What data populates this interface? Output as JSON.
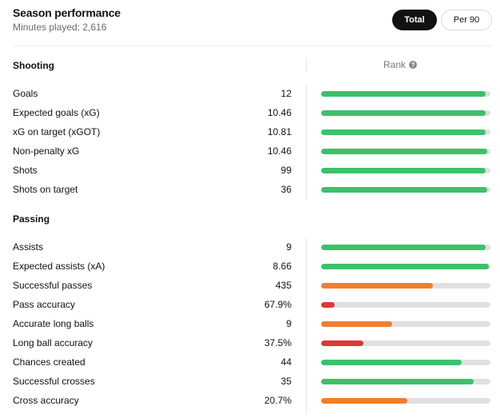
{
  "header": {
    "title": "Season performance",
    "subtitle": "Minutes played: 2,616"
  },
  "toggle": {
    "total_label": "Total",
    "per90_label": "Per 90",
    "selected": "Total"
  },
  "rank_header": {
    "label": "Rank",
    "icon": "info-icon"
  },
  "colors": {
    "high": "#3ec06a",
    "mid": "#f07f2c",
    "low": "#dd3838",
    "track": "#e0e0e0"
  },
  "sections": [
    {
      "title": "Shooting",
      "rows": [
        {
          "label": "Goals",
          "value": "12",
          "rank": 0.97,
          "tier": "high"
        },
        {
          "label": "Expected goals (xG)",
          "value": "10.46",
          "rank": 0.97,
          "tier": "high"
        },
        {
          "label": "xG on target (xGOT)",
          "value": "10.81",
          "rank": 0.97,
          "tier": "high"
        },
        {
          "label": "Non-penalty xG",
          "value": "10.46",
          "rank": 0.98,
          "tier": "high"
        },
        {
          "label": "Shots",
          "value": "99",
          "rank": 0.97,
          "tier": "high"
        },
        {
          "label": "Shots on target",
          "value": "36",
          "rank": 0.98,
          "tier": "high"
        }
      ]
    },
    {
      "title": "Passing",
      "rows": [
        {
          "label": "Assists",
          "value": "9",
          "rank": 0.97,
          "tier": "high"
        },
        {
          "label": "Expected assists (xA)",
          "value": "8.66",
          "rank": 0.99,
          "tier": "high"
        },
        {
          "label": "Successful passes",
          "value": "435",
          "rank": 0.66,
          "tier": "mid"
        },
        {
          "label": "Pass accuracy",
          "value": "67.9%",
          "rank": 0.08,
          "tier": "low"
        },
        {
          "label": "Accurate long balls",
          "value": "9",
          "rank": 0.42,
          "tier": "mid"
        },
        {
          "label": "Long ball accuracy",
          "value": "37.5%",
          "rank": 0.25,
          "tier": "low"
        },
        {
          "label": "Chances created",
          "value": "44",
          "rank": 0.83,
          "tier": "high"
        },
        {
          "label": "Successful crosses",
          "value": "35",
          "rank": 0.9,
          "tier": "high"
        },
        {
          "label": "Cross accuracy",
          "value": "20.7%",
          "rank": 0.51,
          "tier": "mid"
        }
      ]
    }
  ]
}
